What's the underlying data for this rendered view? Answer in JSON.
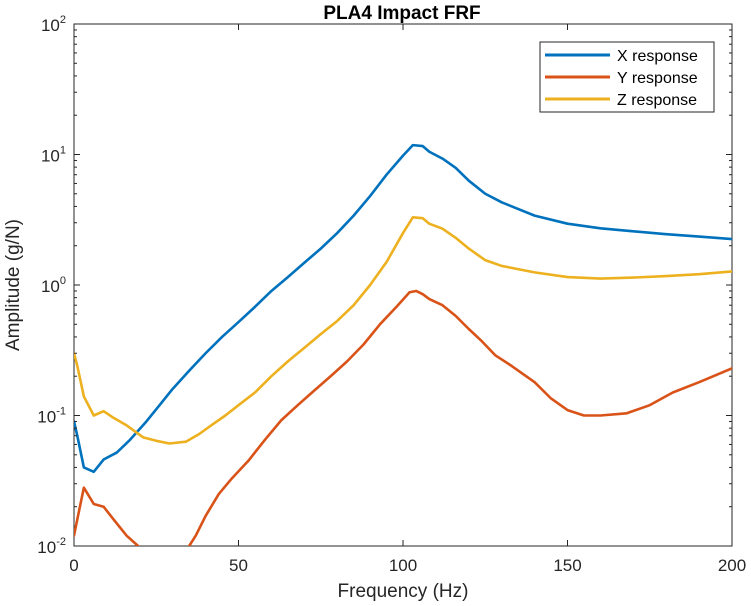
{
  "chart_data": {
    "type": "line",
    "title": "PLA4 Impact FRF",
    "xlabel": "Frequency (Hz)",
    "ylabel": "Amplitude (g/N)",
    "xlim": [
      0,
      200
    ],
    "ylim": [
      0.01,
      100
    ],
    "yscale": "log",
    "grid": false,
    "legend_position": "top-right",
    "x_ticks": [
      {
        "value": 0,
        "label": "0"
      },
      {
        "value": 50,
        "label": "50"
      },
      {
        "value": 100,
        "label": "100"
      },
      {
        "value": 150,
        "label": "150"
      },
      {
        "value": 200,
        "label": "200"
      }
    ],
    "y_ticks": [
      {
        "value": 0.01,
        "base": "10",
        "exp": "-2"
      },
      {
        "value": 0.1,
        "base": "10",
        "exp": "-1"
      },
      {
        "value": 1,
        "base": "10",
        "exp": "0"
      },
      {
        "value": 10,
        "base": "10",
        "exp": "1"
      },
      {
        "value": 100,
        "base": "10",
        "exp": "2"
      }
    ],
    "series": [
      {
        "name": "X response",
        "color": "#0072BD",
        "points": [
          [
            0,
            0.09
          ],
          [
            1,
            0.07
          ],
          [
            3,
            0.04
          ],
          [
            6,
            0.037
          ],
          [
            9,
            0.046
          ],
          [
            13,
            0.052
          ],
          [
            17,
            0.065
          ],
          [
            22,
            0.09
          ],
          [
            26,
            0.12
          ],
          [
            30,
            0.16
          ],
          [
            35,
            0.22
          ],
          [
            40,
            0.3
          ],
          [
            45,
            0.4
          ],
          [
            50,
            0.52
          ],
          [
            55,
            0.68
          ],
          [
            60,
            0.9
          ],
          [
            65,
            1.15
          ],
          [
            70,
            1.48
          ],
          [
            75,
            1.9
          ],
          [
            80,
            2.5
          ],
          [
            85,
            3.4
          ],
          [
            90,
            4.8
          ],
          [
            95,
            7.0
          ],
          [
            100,
            9.8
          ],
          [
            103,
            11.8
          ],
          [
            106,
            11.6
          ],
          [
            108,
            10.5
          ],
          [
            112,
            9.3
          ],
          [
            116,
            7.9
          ],
          [
            120,
            6.3
          ],
          [
            125,
            5.0
          ],
          [
            130,
            4.3
          ],
          [
            140,
            3.4
          ],
          [
            150,
            2.95
          ],
          [
            160,
            2.72
          ],
          [
            170,
            2.58
          ],
          [
            180,
            2.45
          ],
          [
            190,
            2.35
          ],
          [
            200,
            2.25
          ]
        ]
      },
      {
        "name": "Y response",
        "color": "#D95319",
        "points": [
          [
            0,
            0.012
          ],
          [
            1,
            0.016
          ],
          [
            3,
            0.028
          ],
          [
            6,
            0.021
          ],
          [
            9,
            0.02
          ],
          [
            12,
            0.016
          ],
          [
            16,
            0.012
          ],
          [
            19.5,
            0.01
          ],
          [
            null,
            null
          ],
          [
            35,
            0.01
          ],
          [
            37,
            0.012
          ],
          [
            40,
            0.017
          ],
          [
            44,
            0.025
          ],
          [
            48,
            0.033
          ],
          [
            53,
            0.045
          ],
          [
            58,
            0.065
          ],
          [
            63,
            0.092
          ],
          [
            68,
            0.12
          ],
          [
            73,
            0.155
          ],
          [
            78,
            0.2
          ],
          [
            83,
            0.26
          ],
          [
            88,
            0.35
          ],
          [
            93,
            0.5
          ],
          [
            98,
            0.68
          ],
          [
            102,
            0.88
          ],
          [
            104,
            0.9
          ],
          [
            106,
            0.85
          ],
          [
            108,
            0.78
          ],
          [
            112,
            0.7
          ],
          [
            116,
            0.58
          ],
          [
            120,
            0.46
          ],
          [
            124,
            0.37
          ],
          [
            128,
            0.29
          ],
          [
            133,
            0.24
          ],
          [
            140,
            0.18
          ],
          [
            145,
            0.135
          ],
          [
            150,
            0.11
          ],
          [
            155,
            0.1
          ],
          [
            160,
            0.1
          ],
          [
            168,
            0.104
          ],
          [
            175,
            0.12
          ],
          [
            182,
            0.15
          ],
          [
            190,
            0.18
          ],
          [
            200,
            0.23
          ]
        ]
      },
      {
        "name": "Z response",
        "color": "#EDB120",
        "points": [
          [
            0,
            0.3
          ],
          [
            1,
            0.24
          ],
          [
            3,
            0.14
          ],
          [
            6,
            0.1
          ],
          [
            9,
            0.108
          ],
          [
            12,
            0.096
          ],
          [
            16,
            0.084
          ],
          [
            21,
            0.068
          ],
          [
            25,
            0.064
          ],
          [
            29,
            0.061
          ],
          [
            34,
            0.063
          ],
          [
            38,
            0.072
          ],
          [
            42,
            0.085
          ],
          [
            46,
            0.1
          ],
          [
            50,
            0.12
          ],
          [
            55,
            0.15
          ],
          [
            60,
            0.2
          ],
          [
            65,
            0.26
          ],
          [
            70,
            0.33
          ],
          [
            75,
            0.42
          ],
          [
            80,
            0.53
          ],
          [
            85,
            0.7
          ],
          [
            90,
            1.0
          ],
          [
            95,
            1.5
          ],
          [
            100,
            2.5
          ],
          [
            103,
            3.3
          ],
          [
            106,
            3.25
          ],
          [
            108,
            2.95
          ],
          [
            112,
            2.7
          ],
          [
            116,
            2.3
          ],
          [
            120,
            1.9
          ],
          [
            125,
            1.55
          ],
          [
            130,
            1.4
          ],
          [
            140,
            1.25
          ],
          [
            150,
            1.15
          ],
          [
            160,
            1.12
          ],
          [
            170,
            1.14
          ],
          [
            180,
            1.17
          ],
          [
            190,
            1.21
          ],
          [
            200,
            1.27
          ]
        ]
      }
    ]
  }
}
